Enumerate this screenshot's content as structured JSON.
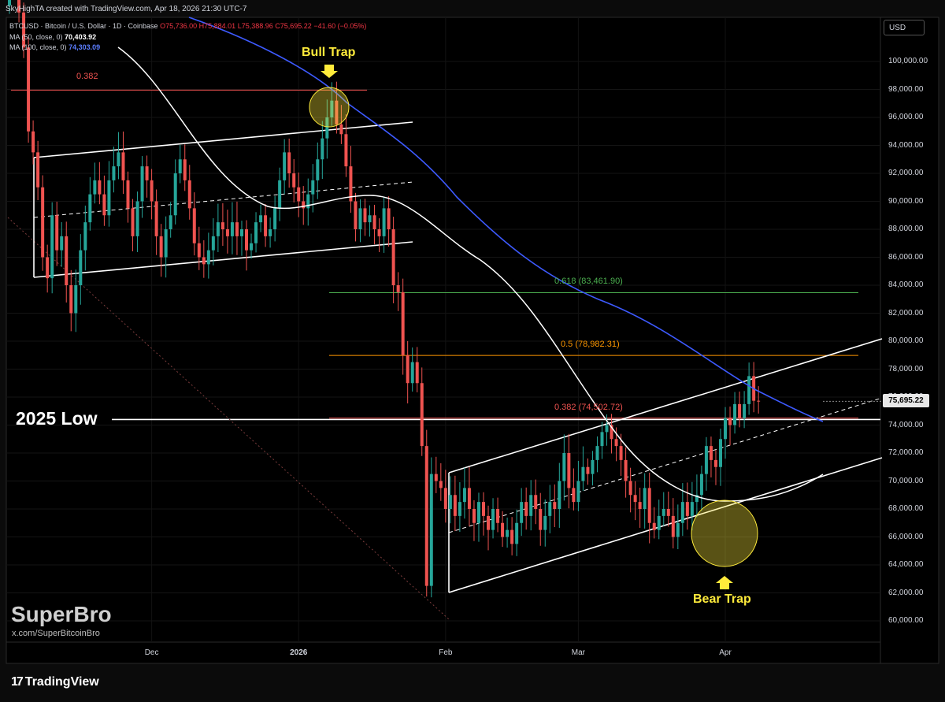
{
  "header": {
    "caption": "SkyHighTA created with TradingView.com, Apr 18, 2026 21:30 UTC-7",
    "symbol": "BTCUSD · Bitcoin / U.S. Dollar · 1D · Coinbase",
    "ohlc": {
      "o": "O75,736.00",
      "h": "H75,884.01",
      "l": "L75,388.96",
      "c": "C75,695.22",
      "chg": "−41.60 (−0.05%)"
    },
    "ma50": {
      "label": "MA (50, close, 0)",
      "value": "70,403.92"
    },
    "ma100": {
      "label": "MA (100, close, 0)",
      "value": "74,303.09"
    }
  },
  "currency_button": "USD",
  "last_price": "75,695.22",
  "watermark": {
    "name": "SuperBro",
    "handle": "x.com/SuperBitcoinBro"
  },
  "footer": {
    "brand": "TradingView",
    "logo_glyph": "17"
  },
  "annotations": {
    "bull_trap": "Bull Trap",
    "bear_trap": "Bear Trap",
    "low_2025": "2025 Low",
    "fib_top": "0.382",
    "fib_618": "0.618 (83,461.90)",
    "fib_05": "0.5 (78,982.31)",
    "fib_0382": "0.382 (74,502.72)"
  },
  "colors": {
    "up": "#26a69a",
    "down": "#ef5350",
    "ma50": "#ffffff",
    "ma100": "#3d5afe",
    "trap": "#ffeb3b"
  },
  "chart_data": {
    "type": "candlestick",
    "ylim": [
      59000,
      102000
    ],
    "y_ticks": [
      60000,
      62000,
      64000,
      66000,
      68000,
      70000,
      72000,
      74000,
      76000,
      78000,
      80000,
      82000,
      84000,
      86000,
      88000,
      90000,
      92000,
      94000,
      96000,
      98000,
      100000
    ],
    "y_tick_labels": [
      "60,000.00",
      "62,000.00",
      "64,000.00",
      "66,000.00",
      "68,000.00",
      "70,000.00",
      "72,000.00",
      "74,000.00",
      "76,000.00",
      "78,000.00",
      "80,000.00",
      "82,000.00",
      "84,000.00",
      "86,000.00",
      "88,000.00",
      "90,000.00",
      "92,000.00",
      "94,000.00",
      "96,000.00",
      "98,000.00",
      "100,000.00"
    ],
    "x_labels": [
      {
        "label": "Dec",
        "date": "2025-12-01"
      },
      {
        "label": "2026",
        "date": "2026-01-01"
      },
      {
        "label": "Feb",
        "date": "2026-02-01"
      },
      {
        "label": "Mar",
        "date": "2026-03-01"
      },
      {
        "label": "Apr",
        "date": "2026-04-01"
      }
    ],
    "start_date": "2025-11-01",
    "candles_close": [
      110000,
      106500,
      103500,
      101000,
      95000,
      93500,
      91000,
      86000,
      84500,
      89000,
      86500,
      87500,
      84000,
      82000,
      84000,
      86500,
      88500,
      90500,
      91500,
      90500,
      89000,
      91500,
      92500,
      93500,
      91500,
      89500,
      87500,
      90000,
      92500,
      91500,
      90000,
      87500,
      86000,
      88000,
      89000,
      92000,
      93000,
      91500,
      89500,
      87000,
      86000,
      85500,
      86500,
      87500,
      88500,
      88000,
      87500,
      88500,
      87500,
      88000,
      86500,
      87000,
      88500,
      89000,
      87500,
      88000,
      89500,
      91500,
      93500,
      92000,
      91000,
      90000,
      89500,
      90500,
      91500,
      93000,
      94500,
      96000,
      97200,
      95500,
      94800,
      92500,
      90000,
      88000,
      89500,
      88500,
      89000,
      88000,
      87500,
      89500,
      88000,
      84000,
      83500,
      79000,
      77000,
      78500,
      77000,
      72500,
      62500,
      70500,
      70000,
      69500,
      68000,
      69000,
      67500,
      68500,
      69500,
      68000,
      67000,
      68500,
      67500,
      66500,
      68000,
      67000,
      66000,
      66500,
      65500,
      67000,
      68500,
      67500,
      69000,
      68000,
      66500,
      67500,
      68500,
      68000,
      70000,
      72000,
      69500,
      68500,
      70000,
      71000,
      70500,
      71500,
      72500,
      73500,
      74000,
      73000,
      72500,
      71500,
      70000,
      69000,
      68500,
      68000,
      69500,
      67000,
      66500,
      67500,
      68000,
      67500,
      66000,
      67000,
      68500,
      67500,
      68500,
      69000,
      70500,
      72500,
      71500,
      71000,
      73000,
      74500,
      74000,
      75500,
      74500,
      75500,
      77500,
      75737,
      75695
    ],
    "ma50_approx": "white line",
    "ma100_approx": "blue line"
  }
}
